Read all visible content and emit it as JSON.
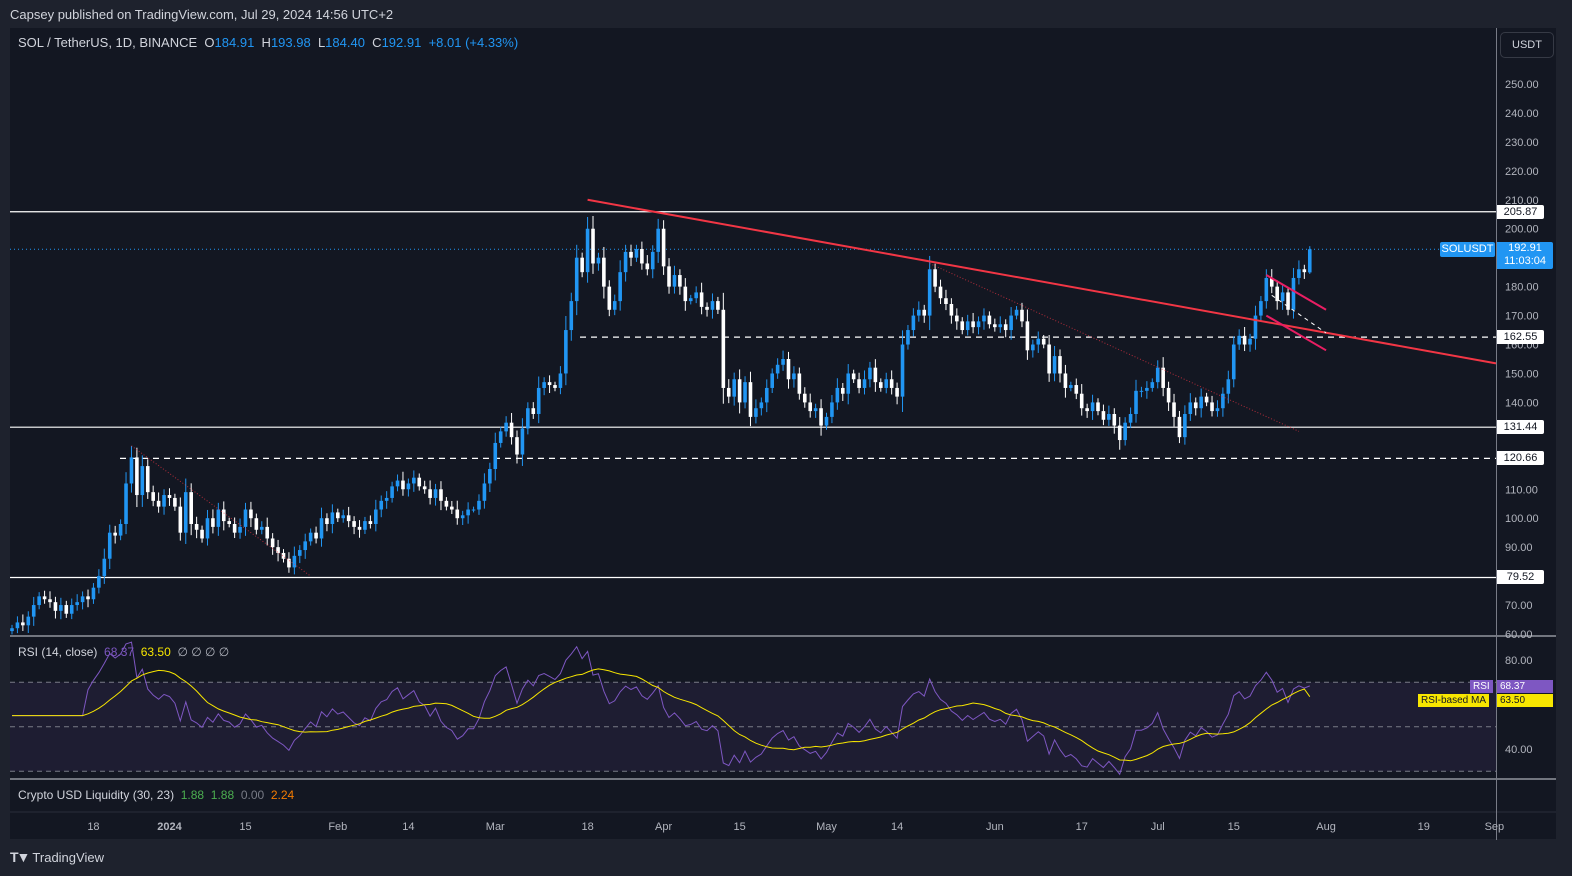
{
  "header": {
    "published": "Capsey published on TradingView.com, Jul 29, 2024 14:56 UTC+2"
  },
  "legend": {
    "symbol": "SOL / TetherUS, 1D, BINANCE",
    "o_label": "O",
    "o": "184.91",
    "h_label": "H",
    "h": "193.98",
    "l_label": "L",
    "l": "184.40",
    "c_label": "C",
    "c": "192.91",
    "change": "+8.01 (+4.33%)"
  },
  "currency": "USDT",
  "price_tag": {
    "symbol": "SOLUSDT",
    "price": "192.91",
    "countdown": "11:03:04"
  },
  "levels": [
    {
      "label": "205.87",
      "style": "solid"
    },
    {
      "label": "162.55",
      "style": "dashed"
    },
    {
      "label": "131.44",
      "style": "solid"
    },
    {
      "label": "120.66",
      "style": "dashed"
    },
    {
      "label": "79.52",
      "style": "solid"
    }
  ],
  "price_axis": [
    "250.00",
    "240.00",
    "230.00",
    "220.00",
    "210.00",
    "200.00",
    "180.00",
    "170.00",
    "160.00",
    "150.00",
    "140.00",
    "110.00",
    "100.00",
    "90.00",
    "70.00",
    "60.00"
  ],
  "time_axis": [
    {
      "label": "18",
      "date": "2023-12-18"
    },
    {
      "label": "2024",
      "date": "2024-01-01",
      "bold": true
    },
    {
      "label": "15",
      "date": "2024-01-15"
    },
    {
      "label": "Feb",
      "date": "2024-02-01"
    },
    {
      "label": "14",
      "date": "2024-02-14"
    },
    {
      "label": "Mar",
      "date": "2024-03-01"
    },
    {
      "label": "18",
      "date": "2024-03-18"
    },
    {
      "label": "Apr",
      "date": "2024-04-01"
    },
    {
      "label": "15",
      "date": "2024-04-15"
    },
    {
      "label": "May",
      "date": "2024-05-01"
    },
    {
      "label": "14",
      "date": "2024-05-14"
    },
    {
      "label": "Jun",
      "date": "2024-06-01"
    },
    {
      "label": "17",
      "date": "2024-06-17"
    },
    {
      "label": "Jul",
      "date": "2024-07-01"
    },
    {
      "label": "15",
      "date": "2024-07-15"
    },
    {
      "label": "Aug",
      "date": "2024-08-01"
    },
    {
      "label": "19",
      "date": "2024-08-19"
    },
    {
      "label": "Sep",
      "date": "2024-09-01"
    }
  ],
  "rsi": {
    "title": "RSI (14, close)",
    "value": "68.37",
    "ma_value": "63.50",
    "extra": "∅ ∅ ∅ ∅",
    "axis": [
      "80.00",
      "40.00"
    ],
    "tag_rsi": "RSI",
    "tag_ma": "RSI-based MA",
    "color_rsi": "#7e57c2",
    "color_ma": "#f7e600"
  },
  "liquidity": {
    "title": "Crypto USD Liquidity (30, 23)",
    "v1": "1.88",
    "v2": "1.88",
    "v3": "0.00",
    "v4": "2.24"
  },
  "footer": {
    "brand": "TradingView"
  },
  "colors": {
    "up": "#2196f3",
    "down": "#ffffff",
    "trendline": "#f23645",
    "channel": "#e91e63",
    "background": "#131722"
  },
  "chart_data": [
    {
      "type": "candlestick",
      "interval": "1D",
      "start_date": "2023-12-03",
      "last_candle": {
        "date": "2024-07-29",
        "open": 184.91,
        "high": 193.98,
        "low": 184.4,
        "close": 192.91
      },
      "ylim": [
        60,
        255
      ],
      "closes": [
        62,
        64,
        63,
        66,
        70,
        73,
        72,
        71,
        68,
        70,
        67,
        70,
        71,
        73,
        72,
        76,
        80,
        86,
        95,
        94,
        98,
        112,
        121,
        108,
        118,
        109,
        106,
        104,
        108,
        107,
        104,
        95,
        109,
        98,
        96,
        93,
        100,
        97,
        103,
        99,
        98,
        95,
        97,
        103,
        100,
        96,
        97,
        93,
        90,
        88,
        86,
        83,
        87,
        89,
        92,
        95,
        93,
        100,
        98,
        102,
        100,
        101,
        99,
        97,
        96,
        99,
        98,
        103,
        106,
        107,
        111,
        113,
        110,
        112,
        114,
        111,
        110,
        107,
        110,
        106,
        104,
        103,
        100,
        101,
        103,
        103,
        106,
        112,
        117,
        126,
        130,
        133,
        128,
        122,
        131,
        138,
        136,
        145,
        147,
        146,
        145,
        150,
        165,
        175,
        190,
        185,
        200,
        188,
        190,
        180,
        172,
        175,
        185,
        192,
        190,
        193,
        188,
        186,
        192,
        200,
        187,
        180,
        184,
        180,
        175,
        176,
        178,
        173,
        172,
        175,
        172,
        145,
        142,
        148,
        140,
        147,
        135,
        138,
        140,
        145,
        150,
        153,
        155,
        148,
        150,
        143,
        140,
        137,
        138,
        132,
        135,
        140,
        145,
        143,
        150,
        148,
        145,
        148,
        152,
        147,
        145,
        148,
        145,
        142,
        160,
        165,
        170,
        172,
        170,
        186,
        180,
        176,
        174,
        170,
        168,
        165,
        168,
        166,
        168,
        170,
        167,
        166,
        167,
        165,
        170,
        172,
        168,
        158,
        160,
        162,
        160,
        150,
        156,
        150,
        145,
        146,
        143,
        138,
        137,
        140,
        137,
        134,
        136,
        132,
        127,
        133,
        136,
        144,
        144,
        145,
        147,
        152,
        145,
        140,
        135,
        128,
        136,
        140,
        138,
        142,
        140,
        137,
        138,
        143,
        148,
        160,
        163,
        160,
        162,
        170,
        175,
        183,
        180,
        175,
        178,
        172,
        183,
        186,
        185,
        192.91
      ],
      "horizontal_levels": [
        205.87,
        162.55,
        131.44,
        120.66,
        79.52
      ],
      "drawings": [
        {
          "kind": "trendline",
          "from": {
            "date": "2024-03-18",
            "price": 210
          },
          "to": {
            "date": "2024-09-02",
            "price": 153.5
          }
        },
        {
          "kind": "dotted-trendline",
          "from": {
            "date": "2023-12-25",
            "price": 125
          },
          "to": {
            "date": "2024-01-27",
            "price": 80
          }
        },
        {
          "kind": "dotted-trendline",
          "from": {
            "date": "2024-05-20",
            "price": 188
          },
          "to": {
            "date": "2024-07-27",
            "price": 130
          }
        },
        {
          "kind": "channel-upper",
          "from": {
            "date": "2024-07-21",
            "price": 184
          },
          "to": {
            "date": "2024-08-01",
            "price": 172
          }
        },
        {
          "kind": "channel-lower",
          "from": {
            "date": "2024-07-21",
            "price": 170
          },
          "to": {
            "date": "2024-08-01",
            "price": 158
          }
        },
        {
          "kind": "projection-dashed",
          "from": {
            "date": "2024-07-22",
            "price": 177
          },
          "to": {
            "date": "2024-08-01",
            "price": 164
          }
        }
      ]
    },
    {
      "type": "line",
      "title": "RSI (14, close)",
      "series": [
        {
          "name": "RSI",
          "last": 68.37
        },
        {
          "name": "RSI-based MA",
          "last": 63.5
        }
      ],
      "ylim": [
        25,
        90
      ],
      "bands": [
        70,
        50,
        30
      ]
    }
  ]
}
